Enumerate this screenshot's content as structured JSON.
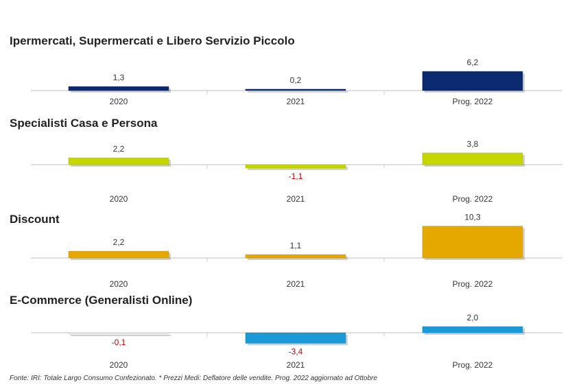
{
  "chart_data": [
    {
      "type": "bar",
      "title": "Ipermercati, Supermercati e Libero Servizio Piccolo",
      "categories": [
        "2020",
        "2021",
        "Prog. 2022"
      ],
      "values": [
        1.3,
        0.2,
        6.2
      ],
      "labels": [
        "1,3",
        "0,2",
        "6,2"
      ],
      "color": "#0b2a6f",
      "negative_label_color": "#c00000",
      "grid": false
    },
    {
      "type": "bar",
      "title": "Specialisti Casa e Persona",
      "categories": [
        "2020",
        "2021",
        "Prog. 2022"
      ],
      "values": [
        2.2,
        -1.1,
        3.8
      ],
      "labels": [
        "2,2",
        "-1,1",
        "3,8"
      ],
      "color": "#c5d600",
      "negative_label_color": "#c00000",
      "grid": false
    },
    {
      "type": "bar",
      "title": "Discount",
      "categories": [
        "2020",
        "2021",
        "Prog. 2022"
      ],
      "values": [
        2.2,
        1.1,
        10.3
      ],
      "labels": [
        "2,2",
        "1,1",
        "10,3"
      ],
      "color": "#e5a800",
      "negative_label_color": "#c00000",
      "grid": false
    },
    {
      "type": "bar",
      "title": "E-Commerce (Generalisti Online)",
      "categories": [
        "2020",
        "2021",
        "Prog. 2022"
      ],
      "values": [
        -0.1,
        -3.4,
        2.0
      ],
      "labels": [
        "-0,1",
        "-3,4",
        "2,0"
      ],
      "color": "#1a9ad6",
      "negative_label_color": "#c00000",
      "grid": false
    }
  ],
  "footnote": "Fonte: IRI: Totale Largo Consumo Confezionato.  * Prezzi Medi: Deflatore delle vendite.  Prog. 2022 aggiornato ad Ottobre"
}
